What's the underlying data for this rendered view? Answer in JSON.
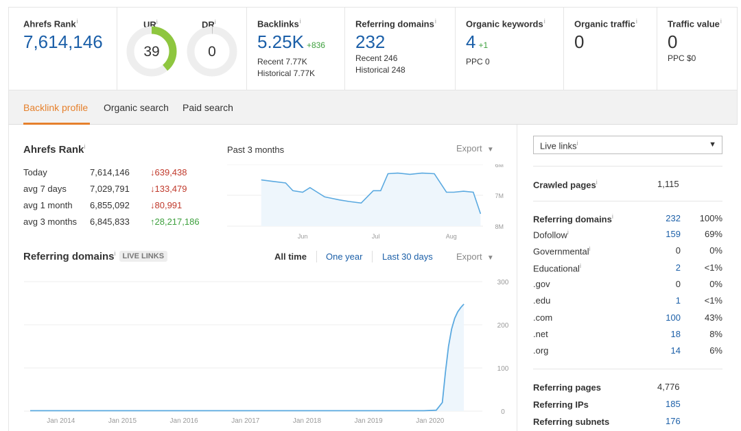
{
  "metrics": {
    "ahrefs_rank": {
      "label": "Ahrefs Rank",
      "value": "7,614,146"
    },
    "ur": {
      "label": "UR",
      "value": "39",
      "level": 39
    },
    "dr": {
      "label": "DR",
      "value": "0",
      "level": 0
    },
    "backlinks": {
      "label": "Backlinks",
      "value": "5.25K",
      "delta": "+836",
      "recent": "Recent 7.77K",
      "historical": "Historical 7.77K"
    },
    "ref_domains": {
      "label": "Referring domains",
      "value": "232",
      "recent": "Recent 246",
      "historical": "Historical 248"
    },
    "organic_keywords": {
      "label": "Organic keywords",
      "value": "4",
      "delta": "+1",
      "ppc": "PPC 0"
    },
    "organic_traffic": {
      "label": "Organic traffic",
      "value": "0"
    },
    "traffic_value": {
      "label": "Traffic value",
      "value": "0",
      "ppc": "PPC $0"
    },
    "info_mark": "i"
  },
  "tabs": [
    "Backlink profile",
    "Organic search",
    "Paid search"
  ],
  "rank_section": {
    "title": "Ahrefs Rank",
    "period": "Past 3 months",
    "export": "Export",
    "rows": [
      {
        "label": "Today",
        "value": "7,614,146",
        "delta": "639,438",
        "dir": "down"
      },
      {
        "label": "avg 7 days",
        "value": "7,029,791",
        "delta": "133,479",
        "dir": "down"
      },
      {
        "label": "avg 1 month",
        "value": "6,855,092",
        "delta": "80,991",
        "dir": "down"
      },
      {
        "label": "avg 3 months",
        "value": "6,845,833",
        "delta": "28,217,186",
        "dir": "up"
      }
    ]
  },
  "refdom_section": {
    "title": "Referring domains",
    "badge": "LIVE LINKS",
    "filters": [
      "All time",
      "One year",
      "Last 30 days"
    ],
    "export": "Export"
  },
  "live_links_select": "Live links",
  "stats": {
    "crawled_pages": {
      "label": "Crawled pages",
      "value": "1,115"
    },
    "referring_domains": {
      "label": "Referring domains",
      "value": "232",
      "pct": "100%"
    },
    "breakdown": [
      {
        "label": "Dofollow",
        "value": "159",
        "pct": "69%",
        "info": true,
        "link": true
      },
      {
        "label": "Governmental",
        "value": "0",
        "pct": "0%",
        "info": true,
        "link": false
      },
      {
        "label": "Educational",
        "value": "2",
        "pct": "<1%",
        "info": true,
        "link": true
      },
      {
        "label": ".gov",
        "value": "0",
        "pct": "0%",
        "info": false,
        "link": false
      },
      {
        "label": ".edu",
        "value": "1",
        "pct": "<1%",
        "info": false,
        "link": true
      },
      {
        "label": ".com",
        "value": "100",
        "pct": "43%",
        "info": false,
        "link": true
      },
      {
        "label": ".net",
        "value": "18",
        "pct": "8%",
        "info": false,
        "link": true
      },
      {
        "label": ".org",
        "value": "14",
        "pct": "6%",
        "info": false,
        "link": true
      }
    ],
    "referring_pages": {
      "label": "Referring pages",
      "value": "4,776"
    },
    "referring_ips": {
      "label": "Referring IPs",
      "value": "185"
    },
    "referring_subnets": {
      "label": "Referring subnets",
      "value": "176"
    }
  },
  "chart_data": [
    {
      "type": "area",
      "title": "Ahrefs Rank",
      "x_tick_labels": [
        "Jun",
        "Jul",
        "Aug"
      ],
      "y_tick_labels": [
        "6M",
        "7M",
        "8M"
      ],
      "ylim": [
        6000000,
        8000000
      ],
      "y_inverted": true,
      "grid": true,
      "x": [
        "2020-05-15",
        "2020-05-20",
        "2020-05-25",
        "2020-05-28",
        "2020-06-01",
        "2020-06-04",
        "2020-06-07",
        "2020-06-10",
        "2020-06-13",
        "2020-06-16",
        "2020-06-20",
        "2020-06-25",
        "2020-06-30",
        "2020-07-03",
        "2020-07-06",
        "2020-07-10",
        "2020-07-15",
        "2020-07-20",
        "2020-07-25",
        "2020-07-30",
        "2020-08-02",
        "2020-08-06",
        "2020-08-10",
        "2020-08-13"
      ],
      "values": [
        6500000,
        6550000,
        6600000,
        6850000,
        6900000,
        6750000,
        6900000,
        7050000,
        7100000,
        7150000,
        7200000,
        7250000,
        6850000,
        6850000,
        6300000,
        6280000,
        6320000,
        6280000,
        6300000,
        6900000,
        6900000,
        6870000,
        6900000,
        7600000
      ],
      "color": "#5aa9e0"
    },
    {
      "type": "area",
      "title": "Referring domains",
      "x_tick_labels": [
        "Jan 2014",
        "Jan 2015",
        "Jan 2016",
        "Jan 2017",
        "Jan 2018",
        "Jan 2019",
        "Jan 2020"
      ],
      "y_tick_labels": [
        "0",
        "100",
        "200",
        "300"
      ],
      "ylim": [
        0,
        300
      ],
      "grid": true,
      "x": [
        2013.5,
        2019.9,
        2020.1,
        2020.2,
        2020.25,
        2020.3,
        2020.35,
        2020.4,
        2020.45,
        2020.5,
        2020.55
      ],
      "values": [
        1,
        1,
        2,
        20,
        90,
        150,
        190,
        215,
        230,
        240,
        248
      ],
      "color": "#5aa9e0"
    }
  ]
}
